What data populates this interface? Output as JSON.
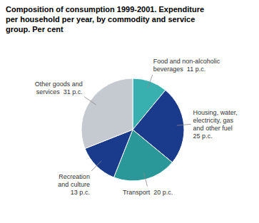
{
  "chart_data": {
    "type": "pie",
    "title": "Composition of consumption 1999-2001. Expenditure\nper household per year, by commodity and service\ngroup. Per cent",
    "categories": [
      "Food and non-alcoholic\nbeverages  11 p.c.",
      "Housing, water,\nelectricity, gas\nand other fuel\n25 p.c.",
      "Transport  20 p.c.",
      "Recreation\nand culture\n13 p.c.",
      "Other goods and\nservices  31 p.c."
    ],
    "values": [
      11,
      25,
      20,
      13,
      31
    ],
    "colors": [
      "#38b0b0",
      "#1a3a8c",
      "#2a9898",
      "#1a3a8c",
      "#c5c9d0"
    ]
  }
}
